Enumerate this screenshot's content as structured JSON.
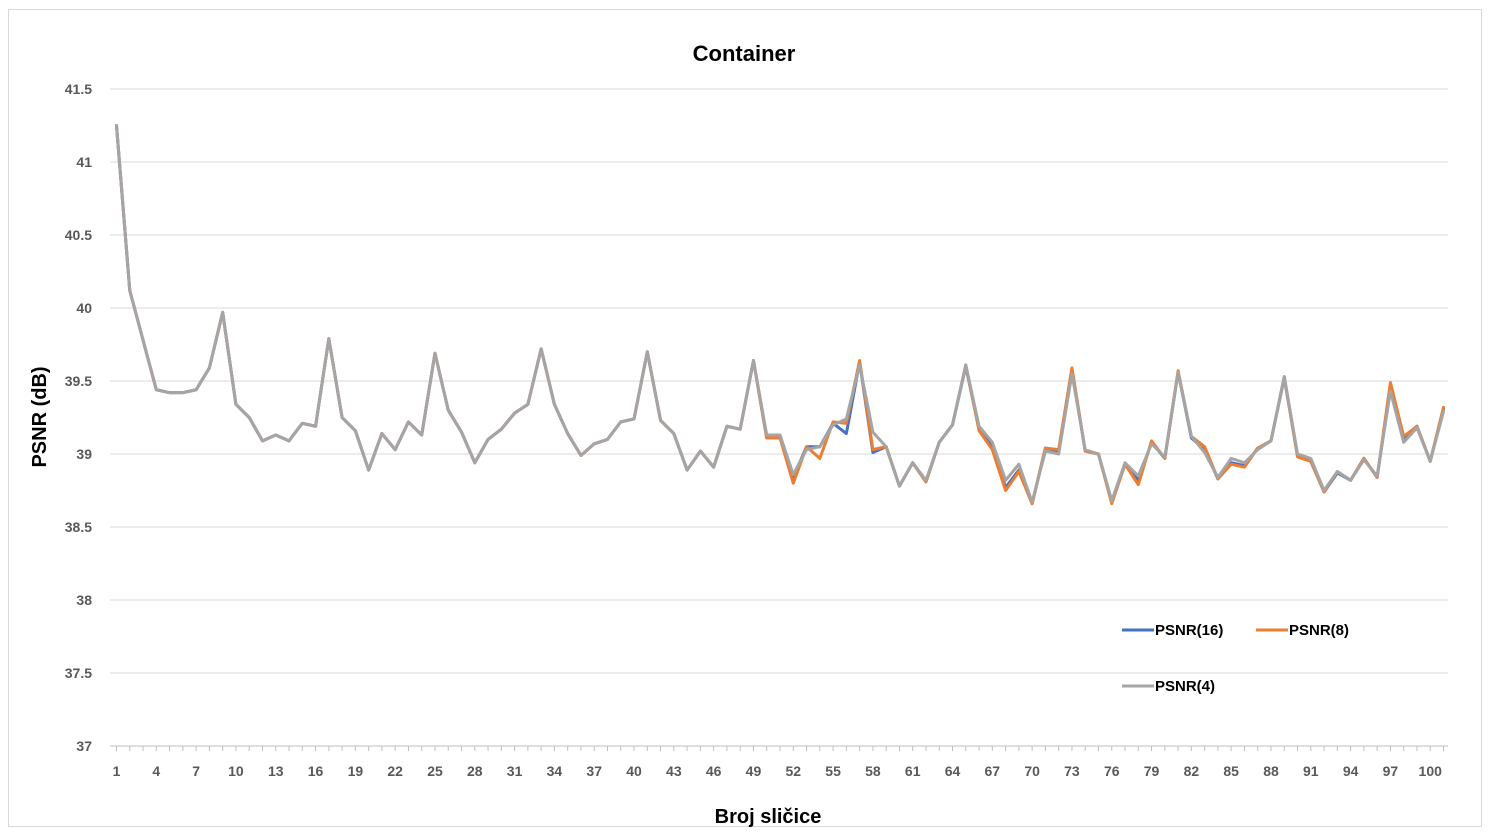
{
  "chart_data": {
    "type": "line",
    "title": "Container",
    "xlabel": "Broj sličice",
    "ylabel": "PSNR (dB)",
    "ylim": [
      37,
      41.5
    ],
    "yticks": [
      37,
      37.5,
      38,
      38.5,
      39,
      39.5,
      40,
      40.5,
      41,
      41.5
    ],
    "ytick_labels": [
      "37",
      "37.5",
      "38",
      "38.5",
      "39",
      "39.5",
      "40",
      "40.5",
      "41",
      "41.5"
    ],
    "xlim": [
      1,
      101
    ],
    "xticks": [
      1,
      4,
      7,
      10,
      13,
      16,
      19,
      22,
      25,
      28,
      31,
      34,
      37,
      40,
      43,
      46,
      49,
      52,
      55,
      58,
      61,
      64,
      67,
      70,
      73,
      76,
      79,
      82,
      85,
      88,
      91,
      94,
      97,
      100
    ],
    "xtick_labels": [
      "1",
      "4",
      "7",
      "10",
      "13",
      "16",
      "19",
      "22",
      "25",
      "28",
      "31",
      "34",
      "37",
      "40",
      "43",
      "46",
      "49",
      "52",
      "55",
      "58",
      "61",
      "64",
      "67",
      "70",
      "73",
      "76",
      "79",
      "82",
      "85",
      "88",
      "91",
      "94",
      "97",
      "100"
    ],
    "grid": "horizontal",
    "legend_position": "bottom-right",
    "series": [
      {
        "name": "PSNR(16)",
        "color": "#4472C4",
        "values": [
          41.25,
          40.12,
          39.78,
          39.44,
          39.42,
          39.42,
          39.44,
          39.59,
          39.97,
          39.34,
          39.25,
          39.09,
          39.13,
          39.09,
          39.21,
          39.19,
          39.79,
          39.25,
          39.16,
          38.89,
          39.14,
          39.03,
          39.22,
          39.13,
          39.69,
          39.3,
          39.15,
          38.94,
          39.1,
          39.17,
          39.28,
          39.34,
          39.72,
          39.34,
          39.14,
          38.99,
          39.07,
          39.1,
          39.22,
          39.24,
          39.7,
          39.23,
          39.14,
          38.89,
          39.02,
          38.91,
          39.19,
          39.17,
          39.64,
          39.11,
          39.12,
          38.84,
          39.05,
          39.05,
          39.21,
          39.14,
          39.63,
          39.01,
          39.05,
          38.78,
          38.94,
          38.81,
          39.08,
          39.2,
          39.6,
          39.17,
          39.05,
          38.77,
          38.89,
          38.66,
          39.04,
          39.02,
          39.58,
          39.02,
          39.0,
          38.67,
          38.93,
          38.82,
          39.08,
          38.97,
          39.56,
          39.11,
          39.03,
          38.83,
          38.94,
          38.92,
          39.04,
          39.09,
          39.52,
          38.99,
          38.95,
          38.74,
          38.87,
          38.82,
          38.97,
          38.84,
          39.46,
          39.11,
          39.19,
          38.95,
          39.31
        ]
      },
      {
        "name": "PSNR(8)",
        "color": "#ED7D31",
        "values": [
          41.25,
          40.12,
          39.78,
          39.44,
          39.42,
          39.42,
          39.44,
          39.59,
          39.97,
          39.34,
          39.25,
          39.09,
          39.13,
          39.09,
          39.21,
          39.19,
          39.79,
          39.25,
          39.16,
          38.89,
          39.14,
          39.03,
          39.22,
          39.13,
          39.69,
          39.3,
          39.15,
          38.94,
          39.1,
          39.17,
          39.28,
          39.34,
          39.72,
          39.34,
          39.14,
          38.99,
          39.07,
          39.1,
          39.22,
          39.24,
          39.7,
          39.23,
          39.14,
          38.89,
          39.02,
          38.91,
          39.19,
          39.17,
          39.64,
          39.11,
          39.11,
          38.8,
          39.05,
          38.97,
          39.22,
          39.21,
          39.64,
          39.03,
          39.05,
          38.78,
          38.94,
          38.81,
          39.08,
          39.2,
          39.61,
          39.16,
          39.03,
          38.75,
          38.88,
          38.66,
          39.04,
          39.03,
          39.59,
          39.02,
          39.0,
          38.66,
          38.93,
          38.79,
          39.09,
          38.97,
          39.57,
          39.12,
          39.05,
          38.83,
          38.93,
          38.91,
          39.04,
          39.09,
          39.53,
          38.98,
          38.95,
          38.74,
          38.88,
          38.82,
          38.97,
          38.84,
          39.49,
          39.12,
          39.19,
          38.95,
          39.32
        ]
      },
      {
        "name": "PSNR(4)",
        "color": "#A5A5A5",
        "values": [
          41.25,
          40.12,
          39.78,
          39.44,
          39.42,
          39.42,
          39.44,
          39.59,
          39.97,
          39.34,
          39.25,
          39.09,
          39.13,
          39.09,
          39.21,
          39.19,
          39.79,
          39.25,
          39.16,
          38.89,
          39.14,
          39.03,
          39.22,
          39.13,
          39.69,
          39.3,
          39.15,
          38.94,
          39.1,
          39.17,
          39.28,
          39.34,
          39.72,
          39.34,
          39.14,
          38.99,
          39.07,
          39.1,
          39.22,
          39.24,
          39.7,
          39.23,
          39.14,
          38.89,
          39.02,
          38.91,
          39.19,
          39.17,
          39.64,
          39.13,
          39.13,
          38.86,
          39.03,
          39.05,
          39.2,
          39.24,
          39.61,
          39.15,
          39.05,
          38.78,
          38.94,
          38.82,
          39.08,
          39.2,
          39.61,
          39.19,
          39.08,
          38.82,
          38.93,
          38.67,
          39.02,
          39.0,
          39.55,
          39.03,
          39.0,
          38.68,
          38.94,
          38.85,
          39.07,
          38.98,
          39.56,
          39.12,
          39.01,
          38.84,
          38.97,
          38.94,
          39.03,
          39.09,
          39.53,
          39.0,
          38.97,
          38.75,
          38.88,
          38.82,
          38.96,
          38.85,
          39.43,
          39.08,
          39.18,
          38.95,
          39.29
        ]
      }
    ]
  }
}
